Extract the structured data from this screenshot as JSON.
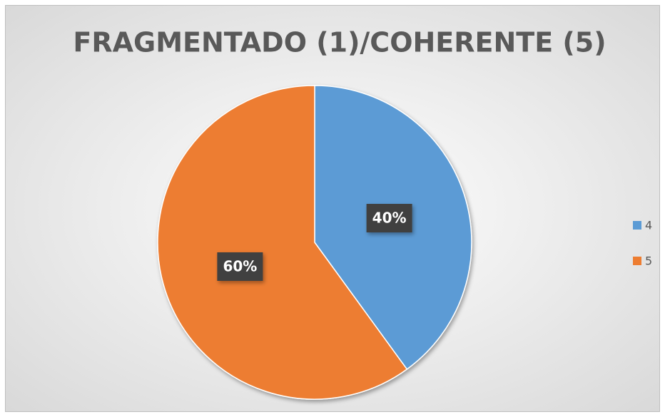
{
  "chart_data": {
    "type": "pie",
    "title": "FRAGMENTADO (1)/COHERENTE (5)",
    "categories": [
      "4",
      "5"
    ],
    "values": [
      40,
      60
    ],
    "value_labels": [
      "40%",
      "60%"
    ],
    "colors": [
      "#5b9bd5",
      "#ed7d31"
    ],
    "legend": "right"
  }
}
